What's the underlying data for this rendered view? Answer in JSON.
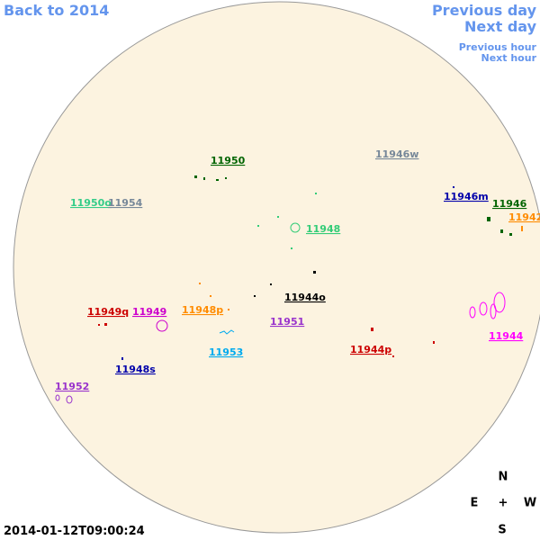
{
  "navigation": {
    "back": "Back to 2014",
    "previous_day": "Previous day",
    "next_day": "Next day",
    "previous_hour": "Previous hour",
    "next_hour": "Next hour"
  },
  "regions": [
    "11950",
    "11946w",
    "11950o",
    "11954",
    "11946m",
    "11946",
    "11942",
    "11948",
    "11944o",
    "11949q",
    "11949",
    "11948p",
    "11951",
    "11944",
    "11944p",
    "11953",
    "11948s",
    "11952"
  ],
  "compass": {
    "north": "N",
    "east": "E",
    "center": "+",
    "west": "W",
    "south": "S"
  },
  "timestamp": "2014-01-12T09:00:24"
}
